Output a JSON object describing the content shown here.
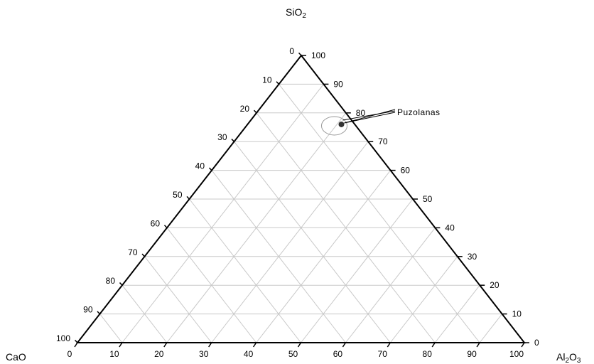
{
  "chart_data": {
    "type": "scatter",
    "subtype": "ternary",
    "axes": {
      "top": {
        "label": "SiO",
        "subscript": "2"
      },
      "left": {
        "label": "CaO",
        "subscript": ""
      },
      "right": {
        "label": "Al",
        "subscript": "2",
        "label_tail": "O",
        "subscript_tail": "3"
      }
    },
    "ticks": {
      "left_edge": [
        "0",
        "10",
        "20",
        "30",
        "40",
        "50",
        "60",
        "70",
        "80",
        "90",
        "100"
      ],
      "right_edge": [
        "100",
        "90",
        "80",
        "70",
        "60",
        "50",
        "40",
        "30",
        "20",
        "10",
        "0"
      ],
      "bottom_edge": [
        "0",
        "10",
        "20",
        "30",
        "40",
        "50",
        "60",
        "70",
        "80",
        "90",
        "100"
      ]
    },
    "grid": true,
    "grid_step": 10,
    "series": [
      {
        "name": "Puzolanas",
        "points": [
          {
            "SiO2": 76,
            "Al2O3": 21,
            "CaO": 3
          }
        ]
      }
    ],
    "annotation": {
      "text": "Puzolanas"
    },
    "colors": {
      "axis": "#000000",
      "grid": "#c8c8c8",
      "point": "#333333",
      "circle": "#999999"
    }
  }
}
